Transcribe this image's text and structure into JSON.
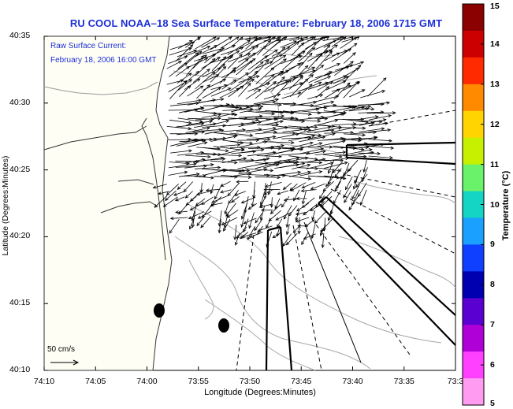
{
  "title": "RU COOL  NOAA–18  Sea Surface Temperature:  February 18, 2006 1715 GMT",
  "legend": {
    "line1": "Raw Surface Current:",
    "line2": "February 18, 2006 16:00 GMT"
  },
  "axes": {
    "xlabel": "Longitude (Degrees:Minutes)",
    "ylabel": "Latitude (Degrees:Minutes)",
    "xticks": [
      "74:10",
      "74:05",
      "74:00",
      "73:55",
      "73:50",
      "73:45",
      "73:40",
      "73:35",
      "73:3"
    ],
    "yticks": [
      "40:35",
      "40:30",
      "40:25",
      "40:20",
      "40:15",
      "40:10"
    ]
  },
  "colorbar": {
    "label": "Temperature (°C)",
    "ticks": [
      "15",
      "14",
      "13",
      "12",
      "11",
      "10",
      "9",
      "8",
      "7",
      "6",
      "5"
    ],
    "colors": [
      "#8b0000",
      "#cc0000",
      "#ff2a00",
      "#ff8a00",
      "#ffd400",
      "#c6f000",
      "#6bf26b",
      "#14d4c4",
      "#1aa0ff",
      "#1040ff",
      "#0000b0",
      "#5a00d0",
      "#b000d8",
      "#ff40ff",
      "#ff9cf2"
    ]
  },
  "scale_vector": {
    "label": "50 cm/s"
  },
  "colors": {
    "title": "#1c2fd6",
    "legend_text": "#1c2fd6",
    "land": "#fffef5",
    "ocean": "#ffffff"
  }
}
